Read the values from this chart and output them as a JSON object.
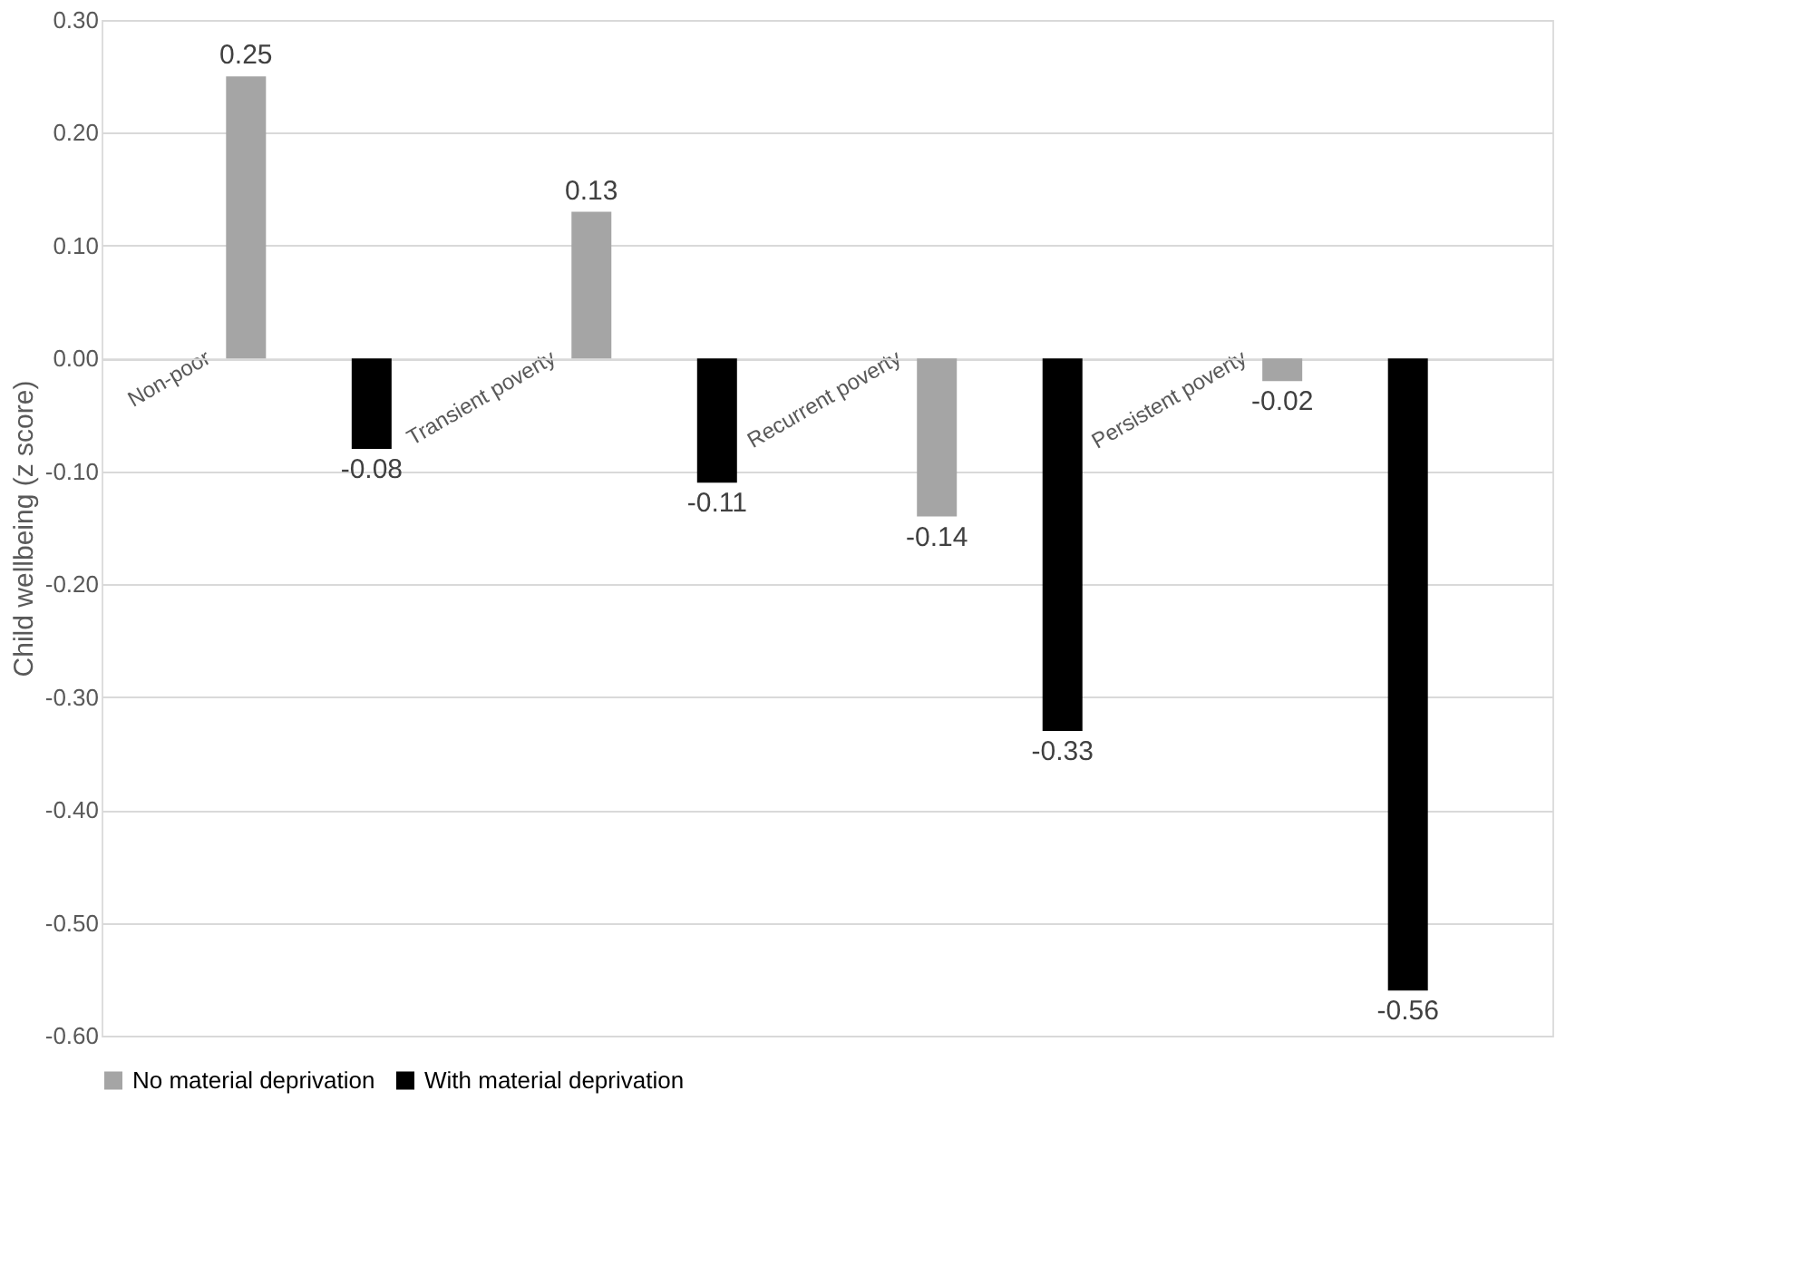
{
  "chart_data": {
    "type": "bar",
    "ylabel": "Child wellbeing (z score)",
    "categories": [
      "Non-poor",
      "Transient poverty",
      "Recurrent poverty",
      "Persistent poverty"
    ],
    "series": [
      {
        "name": "No material deprivation",
        "color": "#a5a5a5",
        "values": [
          0.25,
          0.13,
          -0.14,
          -0.02
        ]
      },
      {
        "name": "With material deprivation",
        "color": "#000000",
        "values": [
          -0.08,
          -0.11,
          -0.33,
          -0.56
        ]
      }
    ],
    "ylim": [
      -0.6,
      0.3
    ],
    "yticks": [
      {
        "value": -0.6,
        "label": "-0.60"
      },
      {
        "value": -0.5,
        "label": "-0.50"
      },
      {
        "value": -0.4,
        "label": "-0.40"
      },
      {
        "value": -0.3,
        "label": "-0.30"
      },
      {
        "value": -0.2,
        "label": "-0.20"
      },
      {
        "value": -0.1,
        "label": "-0.10"
      },
      {
        "value": 0,
        "label": "0.00"
      },
      {
        "value": 0.1,
        "label": "0.10"
      },
      {
        "value": 0.2,
        "label": "0.20"
      },
      {
        "value": 0.3,
        "label": "0.30"
      }
    ],
    "grid": "y",
    "legend": "bottom",
    "data_labels": true
  }
}
